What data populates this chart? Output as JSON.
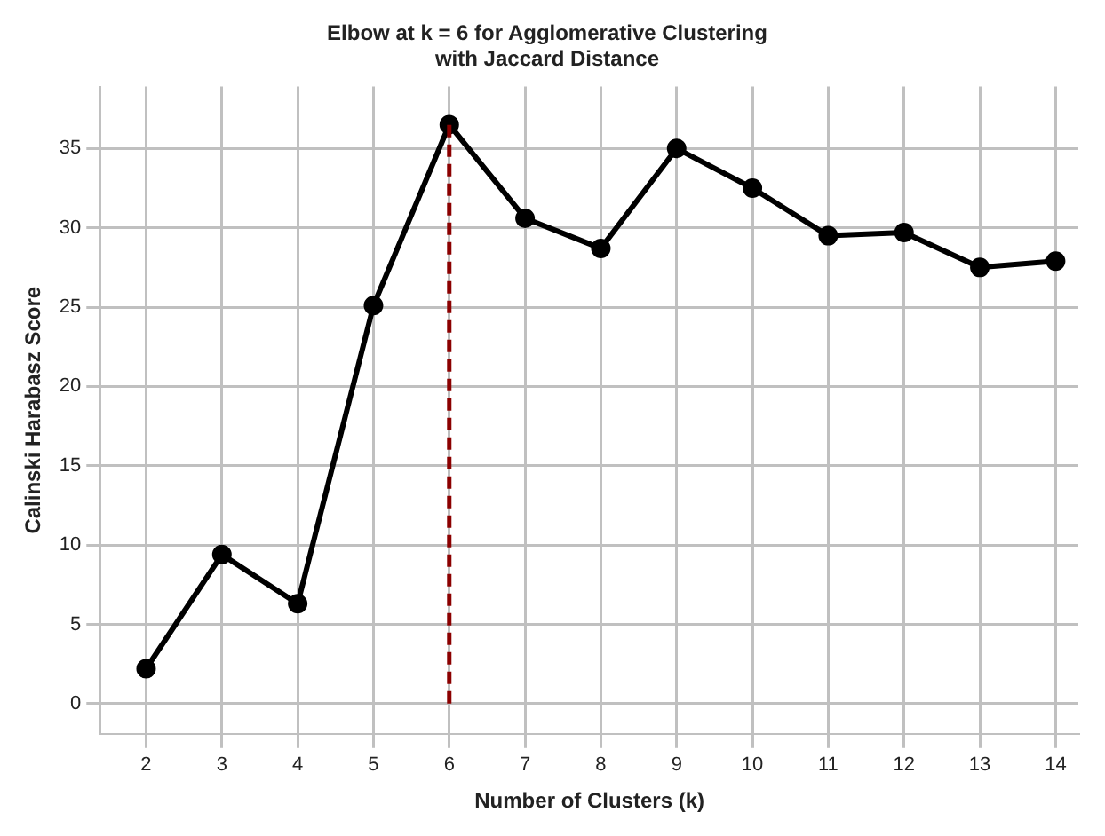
{
  "chart_data": {
    "type": "line",
    "title": "Elbow at k = 6 for Agglomerative Clustering\nwith Jaccard Distance",
    "xlabel": "Number of Clusters (k)",
    "ylabel": "Calinski Harabasz Score",
    "x": [
      2,
      3,
      4,
      5,
      6,
      7,
      8,
      9,
      10,
      11,
      12,
      13,
      14
    ],
    "series": [
      {
        "color": "#000000",
        "values": [
          2.2,
          9.4,
          6.3,
          25.1,
          36.5,
          30.6,
          28.7,
          35.0,
          32.5,
          29.5,
          29.7,
          27.5,
          27.9
        ]
      }
    ],
    "xlim": [
      1.4,
      14.3
    ],
    "xticks": [
      2,
      3,
      4,
      5,
      6,
      7,
      8,
      9,
      10,
      11,
      12,
      13,
      14
    ],
    "ylim": [
      -1.9,
      38.9
    ],
    "yticks": [
      0,
      5,
      10,
      15,
      20,
      25,
      30,
      35
    ],
    "ref_lines": [
      {
        "axis": "x",
        "value": 6,
        "color": "#8b0000",
        "line_style": "dashed"
      }
    ],
    "grid": true,
    "legend": false,
    "marker": "circle",
    "line_style": "solid"
  }
}
